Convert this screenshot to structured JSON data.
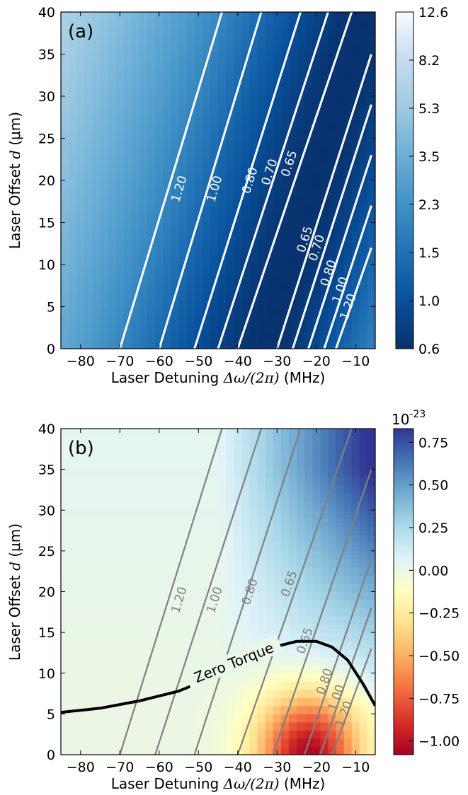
{
  "chart_data": [
    {
      "type": "heatmap",
      "panel_label": "(a)",
      "xlabel_prefix": "Laser Detuning ",
      "xlabel_math": "Δω/(2π)",
      "xlabel_suffix": " (MHz)",
      "ylabel_prefix": "Laser Offset ",
      "ylabel_math": "d",
      "ylabel_suffix": " (μm)",
      "xlim": [
        -85,
        -5
      ],
      "ylim": [
        0,
        40
      ],
      "xticks": [
        "−80",
        "−70",
        "−60",
        "−50",
        "−40",
        "−30",
        "−20",
        "−10"
      ],
      "xtick_values": [
        -80,
        -70,
        -60,
        -50,
        -40,
        -30,
        -20,
        -10
      ],
      "yticks": [
        "0",
        "5",
        "10",
        "15",
        "20",
        "25",
        "30",
        "35",
        "40"
      ],
      "ytick_values": [
        0,
        5,
        10,
        15,
        20,
        25,
        30,
        35,
        40
      ],
      "colorbar_ticks": [
        "0.6",
        "1.0",
        "1.5",
        "2.3",
        "3.5",
        "5.3",
        "8.2",
        "12.6"
      ],
      "colorbar_scale": "log",
      "colormap": [
        "#08306b",
        "#08519c",
        "#2171b5",
        "#4292c6",
        "#6baed6",
        "#9ecae1",
        "#c6dbef",
        "#f7fbff"
      ],
      "contour_color": "#ffffff",
      "contours_left": [
        {
          "label": "1.20",
          "points": [
            [
              -70,
              0
            ],
            [
              -44,
              40
            ]
          ],
          "label_at": [
            -55,
            19
          ]
        },
        {
          "label": "1.00",
          "points": [
            [
              -60,
              0
            ],
            [
              -34,
              40
            ]
          ],
          "label_at": [
            -46,
            19
          ]
        },
        {
          "label": "0.80",
          "points": [
            [
              -51,
              0
            ],
            [
              -24,
              40
            ]
          ],
          "label_at": [
            -37,
            20
          ]
        },
        {
          "label": "0.70",
          "points": [
            [
              -45,
              0
            ],
            [
              -17,
              40
            ]
          ],
          "label_at": [
            -32,
            21
          ]
        },
        {
          "label": "0.65",
          "points": [
            [
              -40,
              0
            ],
            [
              -11,
              40
            ]
          ],
          "label_at": [
            -27,
            22
          ]
        }
      ],
      "contours_right": [
        {
          "label": "0.65",
          "points": [
            [
              -30,
              0
            ],
            [
              -6,
              35
            ]
          ],
          "label_at": [
            -23,
            13
          ]
        },
        {
          "label": "0.70",
          "points": [
            [
              -26,
              0
            ],
            [
              -6,
              29
            ]
          ],
          "label_at": [
            -20,
            12
          ]
        },
        {
          "label": "0.80",
          "points": [
            [
              -22,
              0
            ],
            [
              -6,
              23
            ]
          ],
          "label_at": [
            -17,
            9
          ]
        },
        {
          "label": "1.00",
          "points": [
            [
              -18,
              0
            ],
            [
              -6,
              17
            ]
          ],
          "label_at": [
            -14,
            7
          ]
        },
        {
          "label": "1.20",
          "points": [
            [
              -15,
              0
            ],
            [
              -6,
              12
            ]
          ],
          "label_at": [
            -12,
            5
          ]
        }
      ]
    },
    {
      "type": "heatmap",
      "panel_label": "(b)",
      "xlabel_prefix": "Laser Detuning ",
      "xlabel_math": "Δω/(2π)",
      "xlabel_suffix": " (MHz)",
      "ylabel_prefix": "Laser Offset ",
      "ylabel_math": "d",
      "ylabel_suffix": " (μm)",
      "xlim": [
        -85,
        -5
      ],
      "ylim": [
        0,
        40
      ],
      "xticks": [
        "−80",
        "−70",
        "−60",
        "−50",
        "−40",
        "−30",
        "−20",
        "−10"
      ],
      "xtick_values": [
        -80,
        -70,
        -60,
        -50,
        -40,
        -30,
        -20,
        -10
      ],
      "yticks": [
        "0",
        "5",
        "10",
        "15",
        "20",
        "25",
        "30",
        "35",
        "40"
      ],
      "ytick_values": [
        0,
        5,
        10,
        15,
        20,
        25,
        30,
        35,
        40
      ],
      "colorbar_exponent": "10",
      "colorbar_exponent_power": "-23",
      "colorbar_ticks": [
        "−1.00",
        "−0.75",
        "−0.50",
        "−0.25",
        "0.00",
        "0.25",
        "0.50",
        "0.75"
      ],
      "colorbar_tick_values": [
        -1.0,
        -0.75,
        -0.5,
        -0.25,
        0.0,
        0.25,
        0.5,
        0.75
      ],
      "colorbar_range": [
        -1.08,
        0.83
      ],
      "colormap": [
        "#a50026",
        "#d73027",
        "#f46d43",
        "#fdae61",
        "#fee090",
        "#ffffbf",
        "#e0f3f8",
        "#abd9e9",
        "#74add1",
        "#4575b4",
        "#313695"
      ],
      "contour_color": "#808080",
      "contours": [
        {
          "label": "1.20",
          "points": [
            [
              -70,
              0
            ],
            [
              -44,
              40
            ]
          ],
          "label_at": [
            -55,
            19
          ]
        },
        {
          "label": "1.00",
          "points": [
            [
              -61,
              0
            ],
            [
              -34,
              40
            ]
          ],
          "label_at": [
            -46,
            19
          ]
        },
        {
          "label": "0.80",
          "points": [
            [
              -51,
              0
            ],
            [
              -24,
              40
            ]
          ],
          "label_at": [
            -37,
            20
          ]
        },
        {
          "label": "0.65",
          "points": [
            [
              -40,
              0
            ],
            [
              -11,
              40
            ]
          ],
          "label_at": [
            -27,
            21
          ]
        },
        {
          "label": "0.65",
          "points": [
            [
              -31,
              0
            ],
            [
              -6,
              35
            ]
          ],
          "label_at": [
            -23,
            14
          ]
        },
        {
          "label": "0.80",
          "points": [
            [
              -23,
              0
            ],
            [
              -6,
              24
            ]
          ],
          "label_at": [
            -18,
            9
          ]
        },
        {
          "label": "1.00",
          "points": [
            [
              -19,
              0
            ],
            [
              -6,
              18
            ]
          ],
          "label_at": [
            -15,
            7
          ]
        },
        {
          "label": "1.20",
          "points": [
            [
              -16,
              0
            ],
            [
              -6,
              13
            ]
          ],
          "label_at": [
            -13,
            5
          ]
        }
      ],
      "zero_torque": {
        "label": "Zero Torque",
        "points": [
          [
            -85,
            5.2
          ],
          [
            -75,
            5.7
          ],
          [
            -65,
            6.6
          ],
          [
            -55,
            7.8
          ],
          [
            -45,
            9.8
          ],
          [
            -40,
            11.0
          ],
          [
            -35,
            12.3
          ],
          [
            -30,
            13.3
          ],
          [
            -25,
            13.9
          ],
          [
            -20,
            13.9
          ],
          [
            -16,
            13.2
          ],
          [
            -12,
            11.6
          ],
          [
            -8,
            8.6
          ],
          [
            -5,
            6.0
          ]
        ],
        "label_at": [
          -41,
          11.3
        ],
        "label_angle_deg": 22
      }
    }
  ]
}
